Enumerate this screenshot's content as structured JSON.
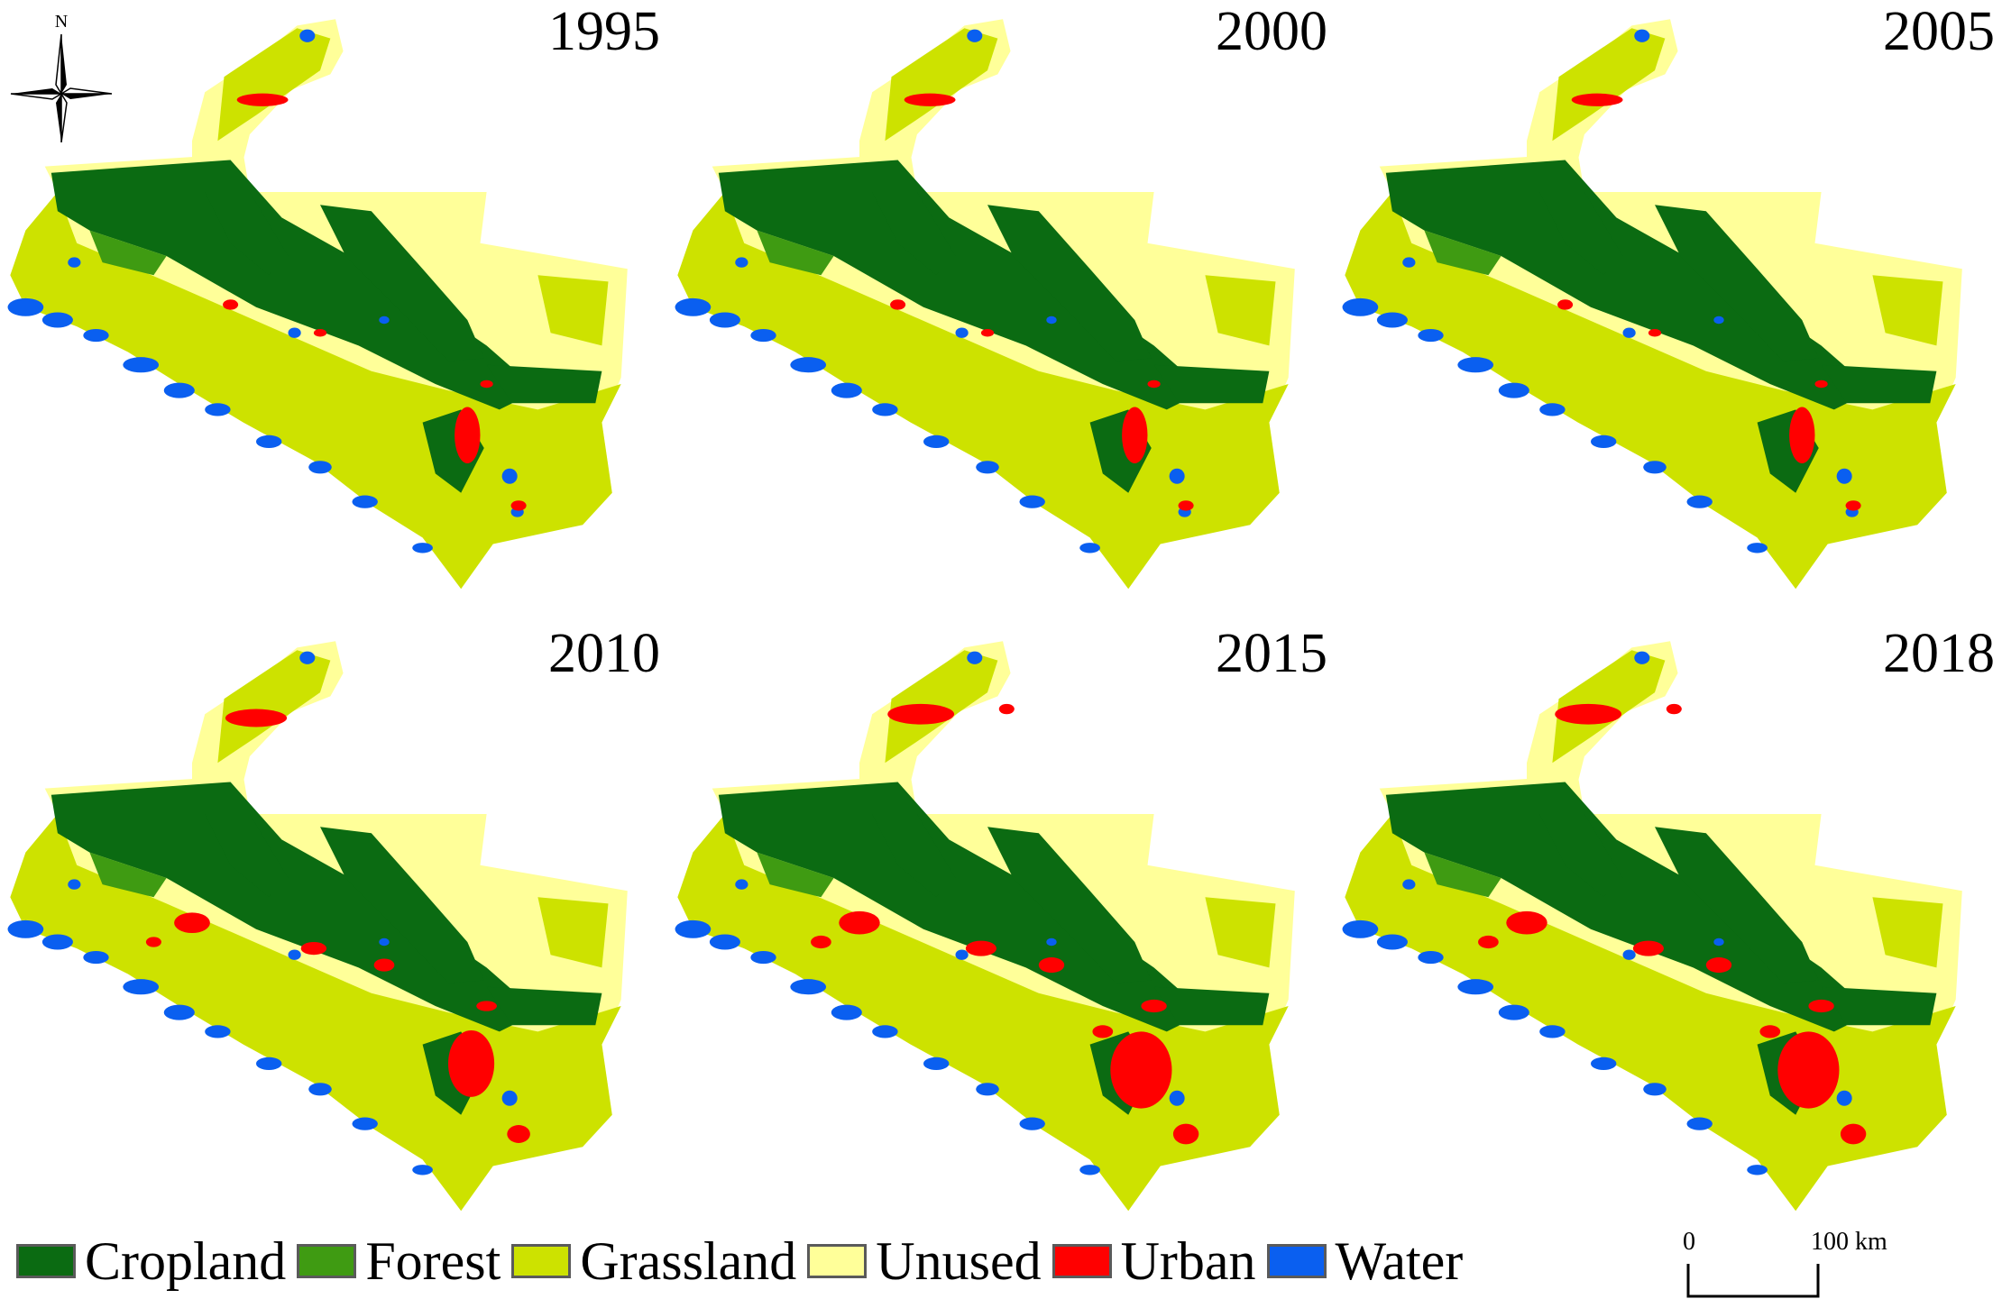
{
  "north_label": "N",
  "panels": [
    {
      "year": "1995",
      "urban_level": 1
    },
    {
      "year": "2000",
      "urban_level": 1
    },
    {
      "year": "2005",
      "urban_level": 1
    },
    {
      "year": "2010",
      "urban_level": 2
    },
    {
      "year": "2015",
      "urban_level": 3
    },
    {
      "year": "2018",
      "urban_level": 3
    }
  ],
  "legend": [
    {
      "label": "Cropland",
      "color": "#0b6b12"
    },
    {
      "label": "Forest",
      "color": "#3f9b12"
    },
    {
      "label": "Grassland",
      "color": "#cde200"
    },
    {
      "label": "Unused",
      "color": "#ffff99"
    },
    {
      "label": "Urban",
      "color": "#ff0000"
    },
    {
      "label": "Water",
      "color": "#0a5ff0"
    }
  ],
  "scale": {
    "start": "0",
    "end": "100 km"
  }
}
